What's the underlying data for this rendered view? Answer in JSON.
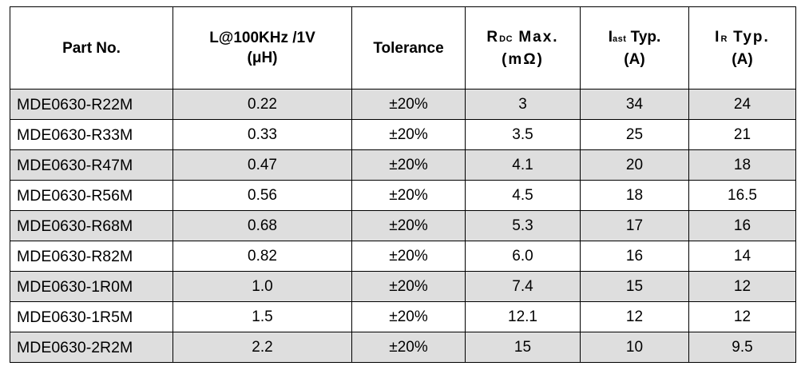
{
  "headers": {
    "part_no": "Part No.",
    "inductance_line1": "L@100KHz /1V",
    "inductance_line2": "(μH)",
    "tolerance": "Tolerance",
    "rdc_main": "R",
    "rdc_sub": "DC",
    "rdc_rest": " Max.",
    "rdc_unit": "(mΩ)",
    "isat_main": "I",
    "isat_sub": "ast",
    "isat_rest": " Typ.",
    "isat_unit": "(A)",
    "ir_main": "I",
    "ir_sub": "R",
    "ir_rest": " Typ.",
    "ir_unit": "(A)"
  },
  "rows": [
    {
      "part": "MDE0630-R22M",
      "inductance": "0.22",
      "tolerance": "±20%",
      "rdc": "3",
      "isat": "34",
      "ir": "24"
    },
    {
      "part": "MDE0630-R33M",
      "inductance": "0.33",
      "tolerance": "±20%",
      "rdc": "3.5",
      "isat": "25",
      "ir": "21"
    },
    {
      "part": "MDE0630-R47M",
      "inductance": "0.47",
      "tolerance": "±20%",
      "rdc": "4.1",
      "isat": "20",
      "ir": "18"
    },
    {
      "part": "MDE0630-R56M",
      "inductance": "0.56",
      "tolerance": "±20%",
      "rdc": "4.5",
      "isat": "18",
      "ir": "16.5"
    },
    {
      "part": "MDE0630-R68M",
      "inductance": "0.68",
      "tolerance": "±20%",
      "rdc": "5.3",
      "isat": "17",
      "ir": "16"
    },
    {
      "part": "MDE0630-R82M",
      "inductance": "0.82",
      "tolerance": "±20%",
      "rdc": "6.0",
      "isat": "16",
      "ir": "14"
    },
    {
      "part": "MDE0630-1R0M",
      "inductance": "1.0",
      "tolerance": "±20%",
      "rdc": "7.4",
      "isat": "15",
      "ir": "12"
    },
    {
      "part": "MDE0630-1R5M",
      "inductance": "1.5",
      "tolerance": "±20%",
      "rdc": "12.1",
      "isat": "12",
      "ir": "12"
    },
    {
      "part": "MDE0630-2R2M",
      "inductance": "2.2",
      "tolerance": "±20%",
      "rdc": "15",
      "isat": "10",
      "ir": "9.5"
    }
  ],
  "colors": {
    "row_shade": "#dedede",
    "row_plain": "#ffffff",
    "border": "#000000"
  }
}
